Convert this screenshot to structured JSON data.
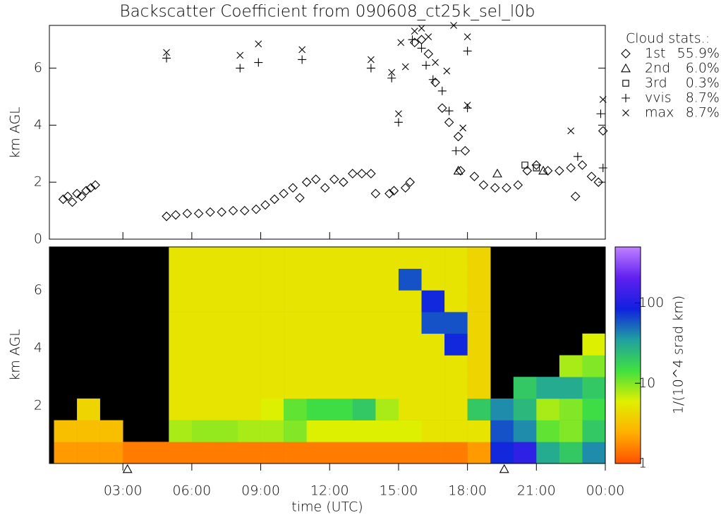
{
  "chart_data": [
    {
      "type": "scatter",
      "title": "Backscatter Coefficient from 090608_ct25k_sel_l0b",
      "y_label": "km AGL",
      "legend_title": "Cloud stats.:",
      "xlim": [
        -0.2,
        24
      ],
      "xticks": [
        3,
        6,
        9,
        12,
        15,
        18,
        21,
        24
      ],
      "ylim": [
        0,
        7.5
      ],
      "yticks": [
        0,
        2,
        4,
        6
      ],
      "series": [
        {
          "name": "1st",
          "stat": "55.9%",
          "marker": "diamond",
          "color": "#000000",
          "x": [
            0.4,
            0.6,
            0.8,
            1.0,
            1.2,
            1.4,
            1.6,
            1.8,
            4.9,
            5.3,
            5.8,
            6.3,
            6.8,
            7.3,
            7.8,
            8.3,
            8.8,
            9.2,
            9.6,
            10.0,
            10.4,
            10.7,
            11.0,
            11.4,
            11.8,
            12.2,
            12.6,
            13.0,
            13.4,
            13.8,
            14.0,
            14.6,
            14.8,
            15.3,
            15.5,
            15.7,
            16.0,
            16.3,
            16.6,
            16.9,
            17.2,
            17.6,
            17.9,
            17.7,
            18.3,
            18.7,
            19.2,
            19.7,
            20.2,
            20.6,
            21.0,
            21.5,
            22.0,
            22.5,
            22.7,
            23.0,
            23.4,
            23.7,
            23.9
          ],
          "values": [
            1.4,
            1.5,
            1.3,
            1.6,
            1.5,
            1.7,
            1.8,
            1.9,
            0.8,
            0.85,
            0.9,
            0.9,
            0.95,
            0.95,
            1.0,
            1.0,
            1.05,
            1.2,
            1.4,
            1.6,
            1.8,
            1.45,
            2.0,
            2.1,
            1.8,
            2.1,
            2.0,
            2.3,
            2.3,
            2.3,
            1.6,
            1.6,
            1.7,
            1.8,
            2.0,
            6.9,
            7.0,
            6.5,
            5.5,
            4.6,
            4.1,
            3.6,
            3.1,
            2.4,
            2.2,
            1.9,
            1.8,
            1.8,
            1.9,
            2.4,
            2.6,
            2.4,
            2.4,
            2.5,
            1.5,
            2.6,
            2.2,
            2.0,
            3.8
          ]
        },
        {
          "name": "2nd",
          "stat": "6.0%",
          "marker": "triangle",
          "color": "#000000",
          "x": [
            17.6,
            19.3,
            21.3
          ],
          "values": [
            2.4,
            2.3,
            2.4
          ]
        },
        {
          "name": "3rd",
          "stat": "0.3%",
          "marker": "square",
          "color": "#000000",
          "x": [
            20.5,
            21.0
          ],
          "values": [
            2.6,
            2.5
          ]
        },
        {
          "name": "vvis",
          "stat": "8.7%",
          "marker": "plus",
          "color": "#000000",
          "x": [
            4.9,
            8.1,
            8.9,
            10.8,
            13.8,
            14.7,
            15.0,
            15.6,
            16.0,
            16.2,
            16.5,
            16.9,
            17.2,
            17.5,
            18.0,
            18.0,
            23.8,
            23.9,
            22.8
          ],
          "values": [
            6.35,
            6.0,
            6.2,
            6.3,
            6.0,
            5.65,
            4.1,
            7.0,
            6.7,
            6.1,
            5.6,
            5.2,
            4.5,
            3.1,
            6.6,
            4.6,
            4.4,
            2.5,
            2.9
          ]
        },
        {
          "name": "max",
          "stat": "8.7%",
          "marker": "cross",
          "color": "#000000",
          "x": [
            4.9,
            8.1,
            8.9,
            10.8,
            13.8,
            14.7,
            15.1,
            15.3,
            15.7,
            16.0,
            16.3,
            16.6,
            17.1,
            17.4,
            18.0,
            18.0,
            17.8,
            15.0,
            22.5,
            23.9
          ],
          "values": [
            6.55,
            6.45,
            6.85,
            6.65,
            6.3,
            5.85,
            6.9,
            6.05,
            7.3,
            7.4,
            7.1,
            6.2,
            5.9,
            7.5,
            7.1,
            4.7,
            3.9,
            4.4,
            3.8,
            4.9
          ]
        }
      ]
    },
    {
      "type": "heatmap",
      "x_label": "time (UTC)",
      "y_label": "km AGL",
      "colorbar_label": "1/(10^4 srad km)",
      "xlim": [
        -0.2,
        24
      ],
      "xticks": [
        {
          "value": 3,
          "label": "03:00"
        },
        {
          "value": 6,
          "label": "06:00"
        },
        {
          "value": 9,
          "label": "09:00"
        },
        {
          "value": 12,
          "label": "12:00"
        },
        {
          "value": 15,
          "label": "15:00"
        },
        {
          "value": 18,
          "label": "18:00"
        },
        {
          "value": 21,
          "label": "21:00"
        },
        {
          "value": 24,
          "label": "00:00"
        }
      ],
      "ylim": [
        0,
        7.5
      ],
      "yticks": [
        2,
        4,
        6
      ],
      "axis_markers": [
        3.2,
        19.6
      ],
      "clim": [
        1,
        500
      ],
      "cticks": [
        1,
        10,
        100
      ],
      "log_color": true,
      "colormap": [
        "#ff5000",
        "#ffb000",
        "#e0f000",
        "#40e040",
        "#20a0a0",
        "#1020e0",
        "#6020f0",
        "#c080ff"
      ],
      "x_bins": [
        0,
        1,
        2,
        3,
        4,
        5,
        6,
        7,
        8,
        9,
        10,
        11,
        12,
        13,
        14,
        15,
        16,
        17,
        18,
        19,
        20,
        21,
        22,
        23,
        24
      ],
      "y_bins": [
        0,
        0.75,
        1.5,
        2.25,
        3,
        3.75,
        4.5,
        5.25,
        6,
        6.75,
        7.5
      ],
      "values": [
        [
          2,
          2,
          2,
          1.5,
          1.5,
          1.5,
          1.5,
          1.5,
          1.5,
          1.5,
          1.5,
          1.5,
          1.5,
          1.5,
          1.5,
          1.5,
          1.5,
          1.5,
          2,
          80,
          120,
          30,
          20,
          40
        ],
        [
          3,
          3,
          3,
          null,
          null,
          8,
          9,
          9,
          8,
          8,
          10,
          6,
          6,
          6,
          6,
          6,
          5,
          5,
          5,
          60,
          40,
          12,
          10,
          20
        ],
        [
          null,
          4,
          null,
          null,
          null,
          5,
          5,
          5,
          5,
          6,
          12,
          15,
          15,
          20,
          8,
          5,
          5,
          5,
          20,
          40,
          25,
          8,
          10,
          15
        ],
        [
          null,
          null,
          null,
          null,
          null,
          5,
          5,
          5,
          5,
          5,
          5,
          5,
          5,
          5,
          5,
          5,
          5,
          5,
          4,
          null,
          20,
          30,
          30,
          20
        ],
        [
          null,
          null,
          null,
          null,
          null,
          5,
          5,
          5,
          5,
          5,
          5,
          5,
          5,
          5,
          5,
          5,
          5,
          5,
          4,
          null,
          null,
          null,
          8,
          10
        ],
        [
          null,
          null,
          null,
          null,
          null,
          5,
          5,
          5,
          5,
          5,
          5,
          5,
          5,
          5,
          5,
          5,
          5,
          80,
          4,
          null,
          null,
          null,
          null,
          6
        ],
        [
          null,
          null,
          null,
          null,
          null,
          5,
          5,
          5,
          5,
          5,
          5,
          5,
          5,
          5,
          5,
          5,
          60,
          60,
          4,
          null,
          null,
          null,
          null,
          null
        ],
        [
          null,
          null,
          null,
          null,
          null,
          5,
          5,
          5,
          5,
          5,
          5,
          5,
          5,
          5,
          5,
          5,
          80,
          5,
          4,
          null,
          null,
          null,
          null,
          null
        ],
        [
          null,
          null,
          null,
          null,
          null,
          5,
          5,
          5,
          5,
          5,
          5,
          5,
          5,
          5,
          5,
          60,
          5,
          5,
          4,
          null,
          null,
          null,
          null,
          null
        ],
        [
          null,
          null,
          null,
          null,
          null,
          5,
          5,
          5,
          5,
          5,
          5,
          5,
          5,
          5,
          5,
          5,
          5,
          5,
          4,
          null,
          null,
          null,
          null,
          null
        ]
      ]
    }
  ]
}
